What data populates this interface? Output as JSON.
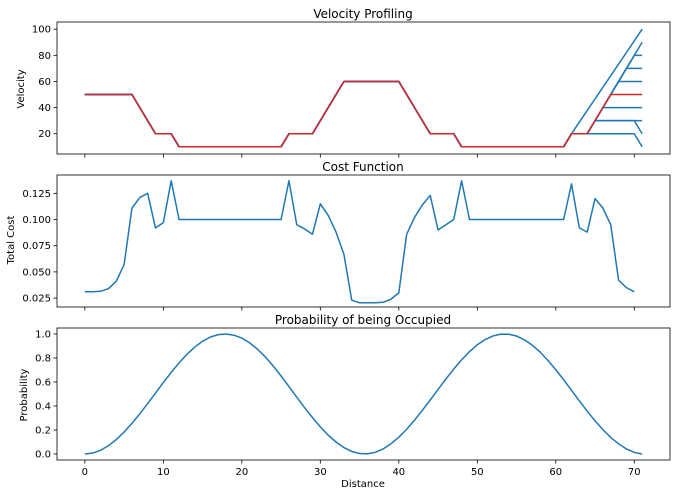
{
  "chart_data": [
    {
      "type": "line",
      "title": "Velocity Profiling",
      "xlabel": "",
      "ylabel": "Velocity",
      "xlim": [
        -3.55,
        74.55
      ],
      "ylim": [
        4.5,
        105.5
      ],
      "xticks": [
        0,
        10,
        20,
        30,
        40,
        50,
        60,
        70
      ],
      "xtick_labels_shown": false,
      "yticks": [
        20,
        40,
        60,
        80,
        100
      ],
      "ytick_labels": [
        "20",
        "40",
        "60",
        "80",
        "100"
      ],
      "colors": {
        "blue": "#1f77b4",
        "red": "#d62728"
      },
      "base_profile": {
        "x": [
          0,
          6,
          9,
          11,
          12,
          25,
          26,
          29,
          33,
          40,
          44,
          47,
          48,
          61,
          62,
          64
        ],
        "y": [
          50,
          50,
          20,
          20,
          10,
          10,
          20,
          20,
          60,
          60,
          20,
          20,
          10,
          10,
          20,
          20
        ]
      },
      "fan_series": [
        {
          "color": "blue",
          "x": [
            0,
            6,
            9,
            11,
            12,
            25,
            26,
            29,
            33,
            40,
            44,
            47,
            48,
            61,
            62,
            71
          ],
          "y": [
            50,
            50,
            20,
            20,
            10,
            10,
            20,
            20,
            60,
            60,
            20,
            20,
            10,
            10,
            20,
            100
          ]
        },
        {
          "color": "blue",
          "x": [
            0,
            6,
            9,
            11,
            12,
            25,
            26,
            29,
            33,
            40,
            44,
            47,
            48,
            61,
            62,
            64,
            71
          ],
          "y": [
            50,
            50,
            20,
            20,
            10,
            10,
            20,
            20,
            60,
            60,
            20,
            20,
            10,
            10,
            20,
            20,
            90
          ]
        },
        {
          "color": "blue",
          "x": [
            0,
            6,
            9,
            11,
            12,
            25,
            26,
            29,
            33,
            40,
            44,
            47,
            48,
            61,
            62,
            64,
            70,
            71
          ],
          "y": [
            50,
            50,
            20,
            20,
            10,
            10,
            20,
            20,
            60,
            60,
            20,
            20,
            10,
            10,
            20,
            20,
            80,
            80
          ]
        },
        {
          "color": "blue",
          "x": [
            0,
            6,
            9,
            11,
            12,
            25,
            26,
            29,
            33,
            40,
            44,
            47,
            48,
            61,
            62,
            64,
            69,
            71
          ],
          "y": [
            50,
            50,
            20,
            20,
            10,
            10,
            20,
            20,
            60,
            60,
            20,
            20,
            10,
            10,
            20,
            20,
            70,
            70
          ]
        },
        {
          "color": "blue",
          "x": [
            0,
            6,
            9,
            11,
            12,
            25,
            26,
            29,
            33,
            40,
            44,
            47,
            48,
            61,
            62,
            64,
            68,
            71
          ],
          "y": [
            50,
            50,
            20,
            20,
            10,
            10,
            20,
            20,
            60,
            60,
            20,
            20,
            10,
            10,
            20,
            20,
            60,
            60
          ]
        },
        {
          "color": "blue",
          "x": [
            0,
            6,
            9,
            11,
            12,
            25,
            26,
            29,
            33,
            40,
            44,
            47,
            48,
            61,
            62,
            64,
            66,
            71
          ],
          "y": [
            50,
            50,
            20,
            20,
            10,
            10,
            20,
            20,
            60,
            60,
            20,
            20,
            10,
            10,
            20,
            20,
            40,
            40
          ]
        },
        {
          "color": "blue",
          "x": [
            0,
            6,
            9,
            11,
            12,
            25,
            26,
            29,
            33,
            40,
            44,
            47,
            48,
            61,
            62,
            64,
            65,
            70,
            71
          ],
          "y": [
            50,
            50,
            20,
            20,
            10,
            10,
            20,
            20,
            60,
            60,
            20,
            20,
            10,
            10,
            20,
            20,
            30,
            30,
            20
          ]
        },
        {
          "color": "blue",
          "x": [
            0,
            6,
            9,
            11,
            12,
            25,
            26,
            29,
            33,
            40,
            44,
            47,
            48,
            61,
            62,
            64,
            65,
            71
          ],
          "y": [
            50,
            50,
            20,
            20,
            10,
            10,
            20,
            20,
            60,
            60,
            20,
            20,
            10,
            10,
            20,
            20,
            30,
            30
          ]
        },
        {
          "color": "blue",
          "x": [
            0,
            6,
            9,
            11,
            12,
            25,
            26,
            29,
            33,
            40,
            44,
            47,
            48,
            61,
            62,
            70,
            71
          ],
          "y": [
            50,
            50,
            20,
            20,
            10,
            10,
            20,
            20,
            60,
            60,
            20,
            20,
            10,
            10,
            20,
            20,
            10
          ]
        },
        {
          "color": "red",
          "x": [
            0,
            6,
            9,
            11,
            12,
            25,
            26,
            29,
            33,
            40,
            44,
            47,
            48,
            61,
            62,
            64,
            67,
            71
          ],
          "y": [
            50,
            50,
            20,
            20,
            10,
            10,
            20,
            20,
            60,
            60,
            20,
            20,
            10,
            10,
            20,
            20,
            50,
            50
          ]
        }
      ]
    },
    {
      "type": "line",
      "title": "Cost Function",
      "xlabel": "",
      "ylabel": "Total Cost",
      "xlim": [
        -3.55,
        74.55
      ],
      "ylim": [
        0.0165,
        0.1425
      ],
      "xticks": [
        0,
        10,
        20,
        30,
        40,
        50,
        60,
        70
      ],
      "xtick_labels_shown": false,
      "yticks": [
        0.025,
        0.05,
        0.075,
        0.1,
        0.125
      ],
      "ytick_labels": [
        "0.025",
        "0.050",
        "0.075",
        "0.100",
        "0.125"
      ],
      "series": [
        {
          "color": "#1f77b4",
          "x": [
            0,
            1,
            2,
            3,
            4,
            5,
            6,
            7,
            8,
            9,
            10,
            11,
            12,
            13,
            14,
            15,
            16,
            17,
            18,
            19,
            20,
            21,
            22,
            23,
            24,
            25,
            26,
            27,
            28,
            29,
            30,
            31,
            32,
            33,
            34,
            35,
            36,
            37,
            38,
            39,
            40,
            41,
            42,
            43,
            44,
            45,
            46,
            47,
            48,
            49,
            50,
            51,
            52,
            53,
            54,
            55,
            56,
            57,
            58,
            59,
            60,
            61,
            62,
            63,
            64,
            65,
            66,
            67,
            68,
            69,
            70
          ],
          "y": [
            0.031,
            0.031,
            0.0315,
            0.034,
            0.041,
            0.057,
            0.111,
            0.121,
            0.125,
            0.092,
            0.097,
            0.137,
            0.1,
            0.1,
            0.1,
            0.1,
            0.1,
            0.1,
            0.1,
            0.1,
            0.1,
            0.1,
            0.1,
            0.1,
            0.1,
            0.1,
            0.137,
            0.095,
            0.091,
            0.086,
            0.115,
            0.104,
            0.088,
            0.067,
            0.023,
            0.0205,
            0.0205,
            0.0205,
            0.021,
            0.024,
            0.03,
            0.086,
            0.102,
            0.114,
            0.123,
            0.09,
            0.095,
            0.1,
            0.137,
            0.1,
            0.1,
            0.1,
            0.1,
            0.1,
            0.1,
            0.1,
            0.1,
            0.1,
            0.1,
            0.1,
            0.1,
            0.1,
            0.134,
            0.092,
            0.088,
            0.12,
            0.111,
            0.095,
            0.042,
            0.035,
            0.031
          ]
        }
      ]
    },
    {
      "type": "line",
      "title": "Probability of being Occupied",
      "xlabel": "Distance",
      "ylabel": "Probability",
      "xlim": [
        -3.55,
        74.55
      ],
      "ylim": [
        -0.05,
        1.05
      ],
      "xticks": [
        0,
        10,
        20,
        30,
        40,
        50,
        60,
        70
      ],
      "xtick_labels": [
        "0",
        "10",
        "20",
        "30",
        "40",
        "50",
        "60",
        "70"
      ],
      "xtick_labels_shown": true,
      "yticks": [
        0,
        0.2,
        0.4,
        0.6,
        0.8,
        1
      ],
      "ytick_labels": [
        "0.0",
        "0.2",
        "0.4",
        "0.6",
        "0.8",
        "1.0"
      ],
      "series": [
        {
          "color": "#1f77b4",
          "x": [
            0,
            1,
            2,
            3,
            4,
            5,
            6,
            7,
            8,
            9,
            10,
            11,
            12,
            13,
            14,
            15,
            16,
            17,
            18,
            19,
            20,
            21,
            22,
            23,
            24,
            25,
            26,
            27,
            28,
            29,
            30,
            31,
            32,
            33,
            34,
            35,
            36,
            37,
            38,
            39,
            40,
            41,
            42,
            43,
            44,
            45,
            46,
            47,
            48,
            49,
            50,
            51,
            52,
            53,
            54,
            55,
            56,
            57,
            58,
            59,
            60,
            61,
            62,
            63,
            64,
            65,
            66,
            67,
            68,
            69,
            70,
            71
          ],
          "y": [
            0.0,
            0.008,
            0.031,
            0.069,
            0.12,
            0.183,
            0.255,
            0.335,
            0.42,
            0.508,
            0.596,
            0.68,
            0.759,
            0.83,
            0.891,
            0.94,
            0.975,
            0.995,
            1.0,
            0.99,
            0.966,
            0.926,
            0.873,
            0.808,
            0.733,
            0.65,
            0.562,
            0.473,
            0.386,
            0.303,
            0.226,
            0.157,
            0.1,
            0.054,
            0.021,
            0.004,
            0.001,
            0.014,
            0.042,
            0.085,
            0.14,
            0.206,
            0.282,
            0.364,
            0.45,
            0.538,
            0.625,
            0.708,
            0.785,
            0.853,
            0.91,
            0.954,
            0.984,
            0.999,
            0.998,
            0.983,
            0.952,
            0.907,
            0.849,
            0.78,
            0.702,
            0.619,
            0.531,
            0.443,
            0.357,
            0.276,
            0.203,
            0.138,
            0.085,
            0.042,
            0.013,
            0.0
          ]
        }
      ]
    }
  ]
}
